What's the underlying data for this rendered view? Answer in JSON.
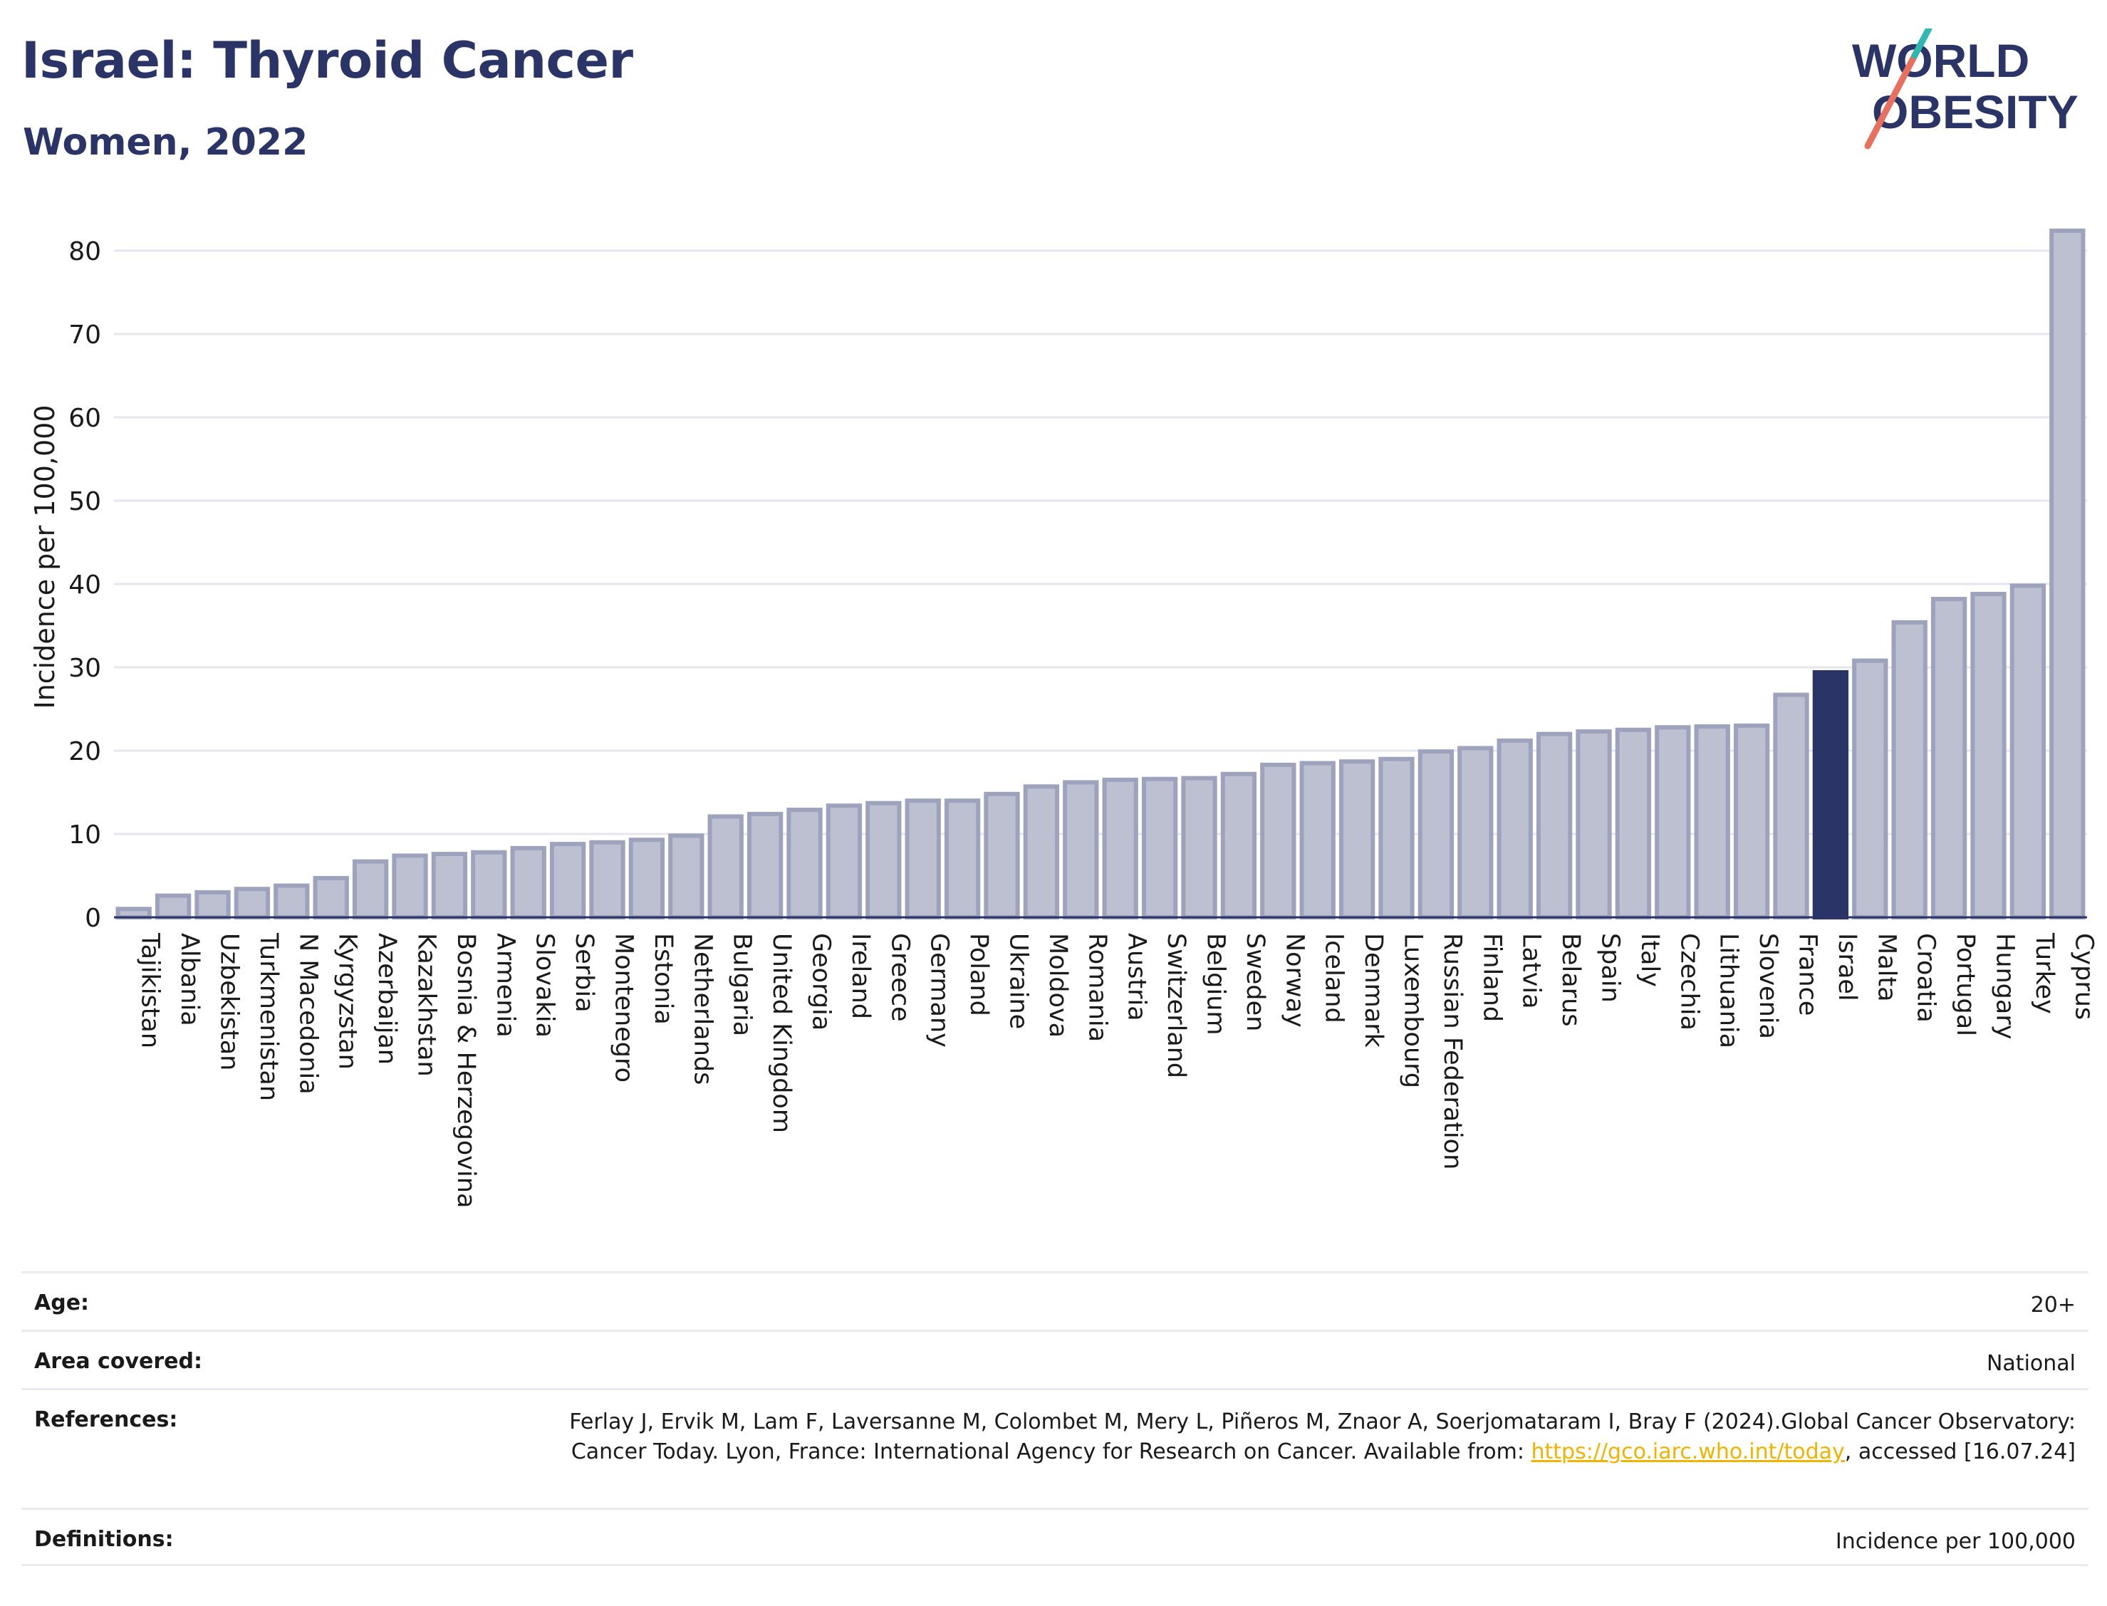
{
  "header": {
    "title": "Israel: Thyroid Cancer",
    "subtitle": "Women, 2022"
  },
  "logo": {
    "line1": "WORLD",
    "line2": "OBESITY"
  },
  "colors": {
    "bar": "#bcc0d0",
    "bar_stroke": "#9ea3bd",
    "highlight": "#2b3466",
    "grid": "#e6e6ee",
    "text": "#1a1a1a"
  },
  "chart_data": {
    "type": "bar",
    "ylabel": "Incidence per 100,000",
    "ylim": [
      0,
      85
    ],
    "yticks": [
      0,
      10,
      20,
      30,
      40,
      50,
      60,
      70,
      80
    ],
    "grid": true,
    "highlight": "Israel",
    "categories": [
      "Tajikistan",
      "Albania",
      "Uzbekistan",
      "Turkmenistan",
      "N Macedonia",
      "Kyrgyzstan",
      "Azerbaijan",
      "Kazakhstan",
      "Bosnia & Herzegovina",
      "Armenia",
      "Slovakia",
      "Serbia",
      "Montenegro",
      "Estonia",
      "Netherlands",
      "Bulgaria",
      "United Kingdom",
      "Georgia",
      "Ireland",
      "Greece",
      "Germany",
      "Poland",
      "Ukraine",
      "Moldova",
      "Romania",
      "Austria",
      "Switzerland",
      "Belgium",
      "Sweden",
      "Norway",
      "Iceland",
      "Denmark",
      "Luxembourg",
      "Russian Federation",
      "Finland",
      "Latvia",
      "Belarus",
      "Spain",
      "Italy",
      "Czechia",
      "Lithuania",
      "Slovenia",
      "France",
      "Israel",
      "Malta",
      "Croatia",
      "Portugal",
      "Hungary",
      "Turkey",
      "Cyprus"
    ],
    "values": [
      1.0,
      2.6,
      3.0,
      3.4,
      3.8,
      4.7,
      6.7,
      7.4,
      7.6,
      7.8,
      8.3,
      8.8,
      9.0,
      9.3,
      9.8,
      12.1,
      12.4,
      12.9,
      13.4,
      13.7,
      14.0,
      14.0,
      14.8,
      15.7,
      16.2,
      16.5,
      16.6,
      16.7,
      17.2,
      18.3,
      18.5,
      18.7,
      19.0,
      19.9,
      20.3,
      21.2,
      22.0,
      22.3,
      22.5,
      22.8,
      22.9,
      23.0,
      26.7,
      29.4,
      30.8,
      35.4,
      38.2,
      38.8,
      39.8,
      82.4
    ]
  },
  "meta": [
    {
      "label": "Age:",
      "value": "20+"
    },
    {
      "label": "Area covered:",
      "value": "National"
    },
    {
      "label": "References:",
      "value_pre": "Ferlay J, Ervik M, Lam F, Laversanne M, Colombet M, Mery L, Piñeros M, Znaor A, Soerjomataram I, Bray F (2024).Global Cancer Observatory: Cancer Today. Lyon, France: International Agency for Research on Cancer. Available from: ",
      "link": "https://gco.iarc.who.int/today",
      "value_post": ", accessed [16.07.24]"
    },
    {
      "label": "Definitions:",
      "value": "Incidence per 100,000"
    }
  ]
}
